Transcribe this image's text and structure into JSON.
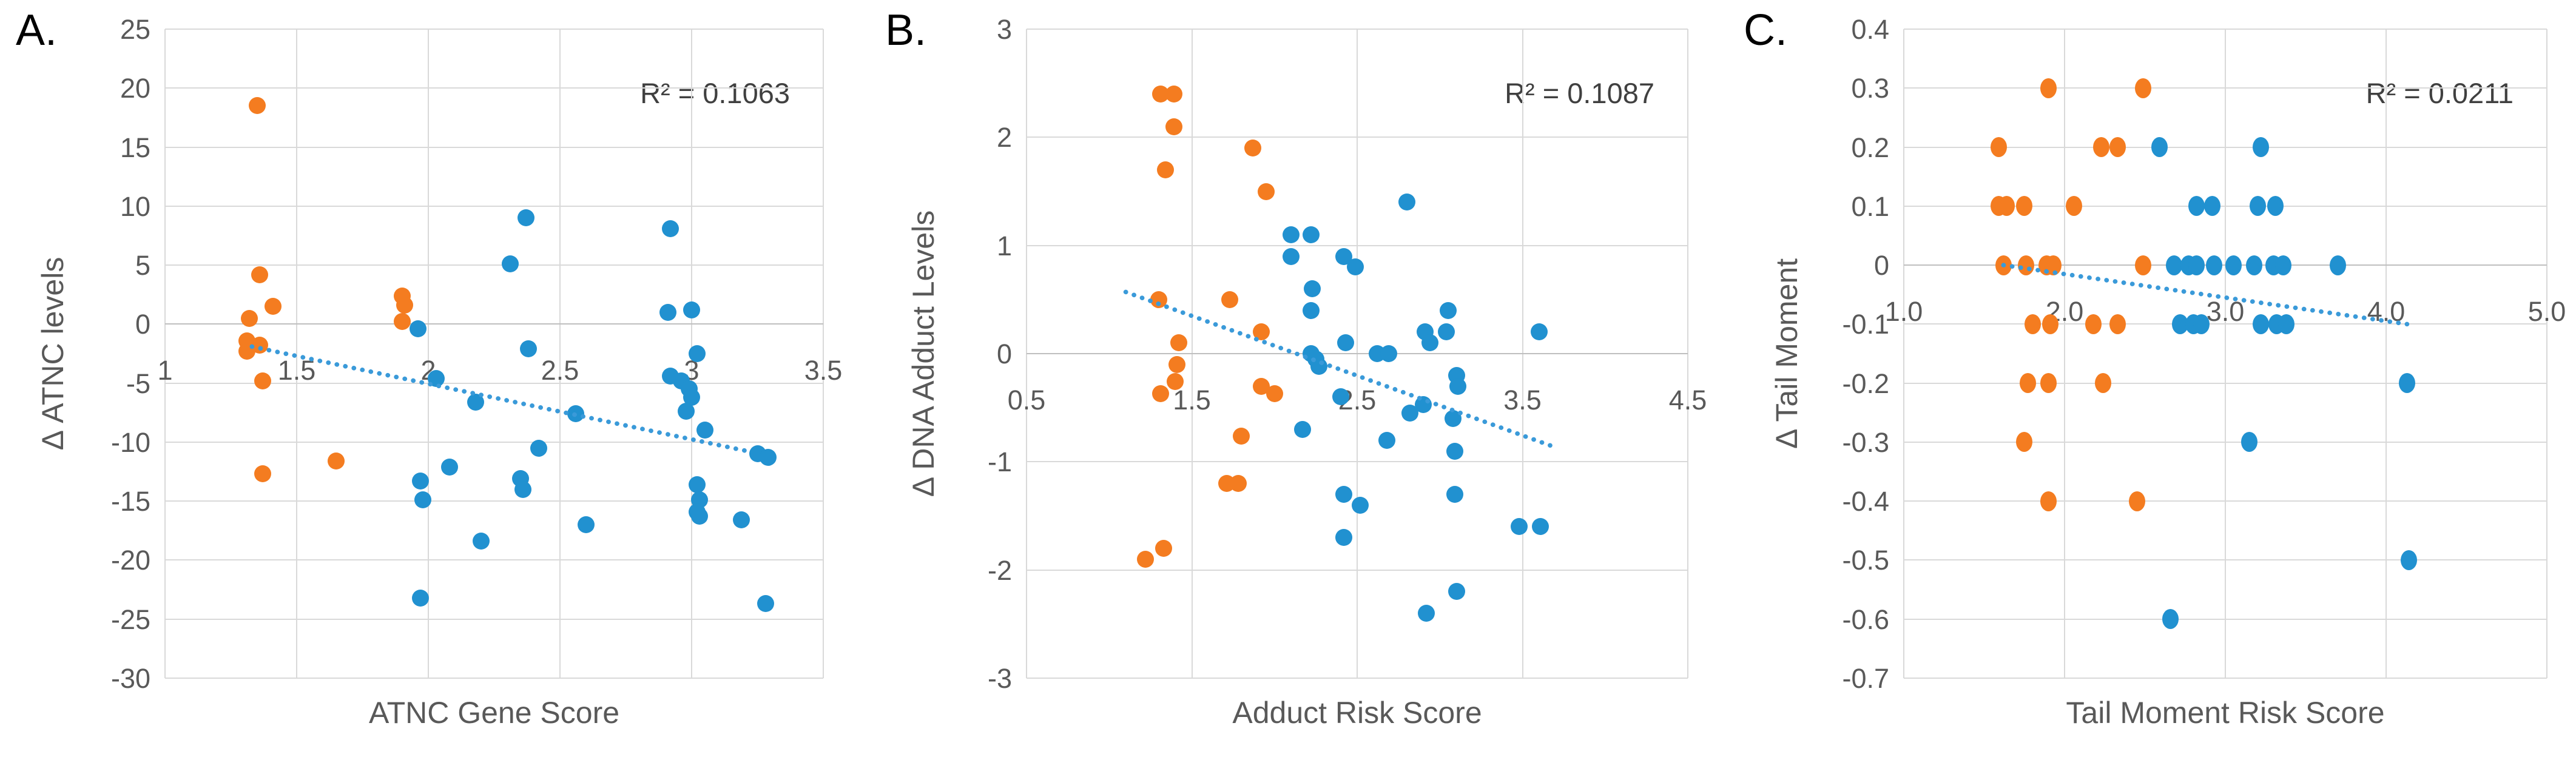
{
  "figure": {
    "background": "#FFFFFF",
    "colors": {
      "orange": "#F47C20",
      "blue": "#2191D0",
      "trendline": "#3A9AD9",
      "gridline": "#D9D9D9",
      "axis_line": "#BFBFBF",
      "tick_text": "#595959",
      "title_text": "#595959",
      "r2_text": "#404040",
      "panel_letter": "#000000"
    }
  },
  "chart_data": [
    {
      "type": "scatter",
      "panel_label": "A.",
      "r2_label": "R² = 0.1063",
      "xlabel": "ATNC Gene Score",
      "ylabel": "Δ ATNC levels",
      "xlim": [
        1,
        3.5
      ],
      "ylim": [
        -30,
        25
      ],
      "x_ticks": [
        "1",
        "1.5",
        "2",
        "2.5",
        "3",
        "3.5"
      ],
      "x_tick_values": [
        1,
        1.5,
        2,
        2.5,
        3,
        3.5
      ],
      "y_ticks": [
        "25",
        "20",
        "15",
        "10",
        "5",
        "0",
        "-5",
        "-10",
        "-15",
        "-20",
        "-25",
        "-30"
      ],
      "y_tick_values": [
        25,
        20,
        15,
        10,
        5,
        0,
        -5,
        -10,
        -15,
        -20,
        -25,
        -30
      ],
      "grid": true,
      "legend": "none",
      "series": [
        {
          "name": "orange",
          "color_key": "orange",
          "points": [
            [
              1.35,
              18.5
            ],
            [
              1.36,
              4.2
            ],
            [
              1.41,
              1.5
            ],
            [
              1.32,
              0.5
            ],
            [
              1.31,
              -1.4
            ],
            [
              1.36,
              -1.8
            ],
            [
              1.31,
              -2.3
            ],
            [
              1.37,
              -4.8
            ],
            [
              1.37,
              -12.7
            ],
            [
              1.65,
              -11.6
            ],
            [
              1.9,
              2.4
            ],
            [
              1.91,
              1.6
            ],
            [
              1.9,
              0.2
            ]
          ]
        },
        {
          "name": "blue",
          "color_key": "blue",
          "points": [
            [
              1.96,
              -0.4
            ],
            [
              2.03,
              -4.6
            ],
            [
              2.18,
              -6.6
            ],
            [
              2.31,
              5.1
            ],
            [
              2.37,
              9.0
            ],
            [
              2.38,
              -2.1
            ],
            [
              2.42,
              -10.5
            ],
            [
              2.35,
              -13.1
            ],
            [
              2.36,
              -14.0
            ],
            [
              2.08,
              -12.1
            ],
            [
              1.97,
              -13.3
            ],
            [
              1.98,
              -14.9
            ],
            [
              2.2,
              -18.4
            ],
            [
              1.97,
              -23.2
            ],
            [
              2.56,
              -7.6
            ],
            [
              2.6,
              -17.0
            ],
            [
              2.92,
              8.1
            ],
            [
              2.91,
              1.0
            ],
            [
              3.0,
              1.2
            ],
            [
              3.02,
              -2.5
            ],
            [
              2.92,
              -4.4
            ],
            [
              2.96,
              -4.8
            ],
            [
              2.99,
              -5.5
            ],
            [
              3.0,
              -6.2
            ],
            [
              2.98,
              -7.4
            ],
            [
              3.05,
              -9.0
            ],
            [
              3.02,
              -13.6
            ],
            [
              3.03,
              -14.9
            ],
            [
              3.02,
              -15.9
            ],
            [
              3.03,
              -16.3
            ],
            [
              3.19,
              -16.6
            ],
            [
              3.25,
              -11.0
            ],
            [
              3.29,
              -11.3
            ],
            [
              3.28,
              -23.7
            ]
          ]
        }
      ],
      "trendline": {
        "style": "dotted",
        "x1": 1.33,
        "y1": -1.9,
        "x2": 3.22,
        "y2": -10.8
      }
    },
    {
      "type": "scatter",
      "panel_label": "B.",
      "r2_label": "R² = 0.1087",
      "xlabel": "Adduct Risk Score",
      "ylabel": "Δ DNA Adduct Levels",
      "xlim": [
        0.5,
        4.5
      ],
      "ylim": [
        -3,
        3
      ],
      "x_ticks": [
        "0.5",
        "1.5",
        "2.5",
        "3.5",
        "4.5"
      ],
      "x_tick_values": [
        0.5,
        1.5,
        2.5,
        3.5,
        4.5
      ],
      "y_ticks": [
        "3",
        "2",
        "1",
        "0",
        "-1",
        "-2",
        "-3"
      ],
      "y_tick_values": [
        3,
        2,
        1,
        0,
        -1,
        -2,
        -3
      ],
      "grid": true,
      "legend": "none",
      "series": [
        {
          "name": "orange",
          "color_key": "orange",
          "points": [
            [
              1.31,
              2.4
            ],
            [
              1.39,
              2.4
            ],
            [
              1.39,
              2.1
            ],
            [
              1.34,
              1.7
            ],
            [
              1.87,
              1.9
            ],
            [
              1.95,
              1.5
            ],
            [
              1.3,
              0.5
            ],
            [
              1.73,
              0.5
            ],
            [
              1.92,
              0.2
            ],
            [
              1.42,
              0.1
            ],
            [
              1.41,
              -0.1
            ],
            [
              1.4,
              -0.26
            ],
            [
              1.31,
              -0.37
            ],
            [
              1.92,
              -0.3
            ],
            [
              2.0,
              -0.37
            ],
            [
              1.8,
              -0.76
            ],
            [
              1.71,
              -1.2
            ],
            [
              1.78,
              -1.2
            ],
            [
              1.33,
              -1.8
            ],
            [
              1.22,
              -1.9
            ]
          ]
        },
        {
          "name": "blue",
          "color_key": "blue",
          "points": [
            [
              2.1,
              1.1
            ],
            [
              2.22,
              1.1
            ],
            [
              2.1,
              0.9
            ],
            [
              2.42,
              0.9
            ],
            [
              2.49,
              0.8
            ],
            [
              2.8,
              1.4
            ],
            [
              2.23,
              0.6
            ],
            [
              2.22,
              0.4
            ],
            [
              3.05,
              0.4
            ],
            [
              2.22,
              0.0
            ],
            [
              2.25,
              -0.05
            ],
            [
              2.27,
              -0.12
            ],
            [
              2.43,
              0.1
            ],
            [
              2.62,
              0.0
            ],
            [
              2.69,
              0.0
            ],
            [
              2.91,
              0.2
            ],
            [
              2.94,
              0.1
            ],
            [
              3.04,
              0.2
            ],
            [
              3.6,
              0.2
            ],
            [
              3.1,
              -0.2
            ],
            [
              3.11,
              -0.3
            ],
            [
              2.17,
              -0.7
            ],
            [
              2.4,
              -0.4
            ],
            [
              2.82,
              -0.55
            ],
            [
              2.9,
              -0.47
            ],
            [
              3.08,
              -0.6
            ],
            [
              2.68,
              -0.8
            ],
            [
              3.09,
              -0.9
            ],
            [
              2.42,
              -1.3
            ],
            [
              2.52,
              -1.4
            ],
            [
              3.09,
              -1.3
            ],
            [
              2.42,
              -1.7
            ],
            [
              3.48,
              -1.6
            ],
            [
              3.61,
              -1.6
            ],
            [
              3.1,
              -2.2
            ],
            [
              2.92,
              -2.4
            ]
          ]
        }
      ],
      "trendline": {
        "style": "dotted",
        "x1": 1.1,
        "y1": 0.57,
        "x2": 3.67,
        "y2": -0.85
      }
    },
    {
      "type": "scatter",
      "panel_label": "C.",
      "r2_label": "R² = 0.0211",
      "xlabel": "Tail Moment Risk Score",
      "ylabel": "Δ Tail Moment",
      "xlim": [
        1.0,
        5.0
      ],
      "ylim": [
        -0.7,
        0.4
      ],
      "x_ticks": [
        "1.0",
        "2.0",
        "3.0",
        "4.0",
        "5.0"
      ],
      "x_tick_values": [
        1.0,
        2.0,
        3.0,
        4.0,
        5.0
      ],
      "y_ticks": [
        "0.4",
        "0.3",
        "0.2",
        "0.1",
        "0",
        "-0.1",
        "-0.2",
        "-0.3",
        "-0.4",
        "-0.5",
        "-0.6",
        "-0.7"
      ],
      "y_tick_values": [
        0.4,
        0.3,
        0.2,
        0.1,
        0,
        -0.1,
        -0.2,
        -0.3,
        -0.4,
        -0.5,
        -0.6,
        -0.7
      ],
      "grid": true,
      "legend": "none",
      "series": [
        {
          "name": "orange",
          "color_key": "orange",
          "points": [
            [
              1.9,
              0.3
            ],
            [
              2.49,
              0.3
            ],
            [
              1.59,
              0.2
            ],
            [
              2.23,
              0.2
            ],
            [
              2.33,
              0.2
            ],
            [
              1.59,
              0.1
            ],
            [
              1.64,
              0.1
            ],
            [
              1.75,
              0.1
            ],
            [
              2.06,
              0.1
            ],
            [
              1.62,
              0.0
            ],
            [
              1.76,
              0.0
            ],
            [
              1.89,
              0.0
            ],
            [
              1.93,
              0.0
            ],
            [
              2.49,
              0.0
            ],
            [
              1.8,
              -0.1
            ],
            [
              1.91,
              -0.1
            ],
            [
              2.18,
              -0.1
            ],
            [
              2.33,
              -0.1
            ],
            [
              1.77,
              -0.2
            ],
            [
              1.9,
              -0.2
            ],
            [
              2.24,
              -0.2
            ],
            [
              1.75,
              -0.3
            ],
            [
              1.9,
              -0.4
            ],
            [
              2.45,
              -0.4
            ]
          ]
        },
        {
          "name": "blue",
          "color_key": "blue",
          "points": [
            [
              2.59,
              0.2
            ],
            [
              3.22,
              0.2
            ],
            [
              2.82,
              0.1
            ],
            [
              2.92,
              0.1
            ],
            [
              3.2,
              0.1
            ],
            [
              3.31,
              0.1
            ],
            [
              2.68,
              0.0
            ],
            [
              2.77,
              0.0
            ],
            [
              2.82,
              0.0
            ],
            [
              2.93,
              0.0
            ],
            [
              3.05,
              0.0
            ],
            [
              3.18,
              0.0
            ],
            [
              3.3,
              0.0
            ],
            [
              3.36,
              0.0
            ],
            [
              3.7,
              0.0
            ],
            [
              2.72,
              -0.1
            ],
            [
              2.8,
              -0.1
            ],
            [
              2.85,
              -0.1
            ],
            [
              3.22,
              -0.1
            ],
            [
              3.32,
              -0.1
            ],
            [
              3.38,
              -0.1
            ],
            [
              4.13,
              -0.2
            ],
            [
              3.15,
              -0.3
            ],
            [
              4.14,
              -0.5
            ],
            [
              2.66,
              -0.6
            ]
          ]
        }
      ],
      "trendline": {
        "style": "dotted",
        "x1": 1.62,
        "y1": 0.0,
        "x2": 4.13,
        "y2": -0.1
      }
    }
  ]
}
